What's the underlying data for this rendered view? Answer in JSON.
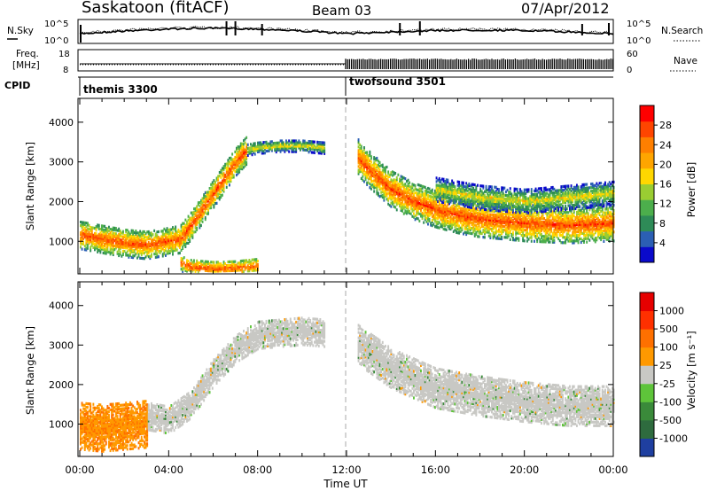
{
  "header": {
    "radar": "Saskatoon (fitACF)",
    "beam": "Beam 03",
    "date": "07/Apr/2012"
  },
  "noise_panel": {
    "left_label": "N.Sky",
    "right_label": "N.Search",
    "left_ticks": [
      "10^5",
      "10^0"
    ],
    "right_ticks": [
      "10^5",
      "10^0"
    ]
  },
  "freq_panel": {
    "left_label_1": "Freq.",
    "left_label_2": "[MHz]",
    "right_label": "Nave",
    "left_ticks": [
      "18",
      "8"
    ],
    "right_ticks": [
      "60",
      "0"
    ]
  },
  "cpid": {
    "label": "CPID",
    "modes": [
      {
        "name": "themis 3300",
        "start_hour": 0
      },
      {
        "name": "twofsound 3501",
        "start_hour": 12
      }
    ]
  },
  "chart_data": [
    {
      "type": "heatmap",
      "panel": "power",
      "ylabel": "Slant Range [km]",
      "yticks": [
        1000,
        2000,
        3000,
        4000
      ],
      "ylim": [
        180,
        4600
      ],
      "xlim": [
        0,
        24
      ],
      "x_unit": "hour UT",
      "colorbar": {
        "label": "Power [dB]",
        "ticks": [
          "4",
          "8",
          "12",
          "16",
          "20",
          "24",
          "28"
        ],
        "colors": [
          "#0a0acb",
          "#2b5fb4",
          "#2e8b57",
          "#4cae4c",
          "#9acd32",
          "#ffd700",
          "#ffa500",
          "#ff7f00",
          "#ff4500",
          "#ff0000"
        ]
      },
      "bands": [
        {
          "name": "near-range echoes",
          "x": [
            0,
            1,
            2,
            3,
            4,
            4.5,
            5,
            6,
            7,
            7.5
          ],
          "range_center": [
            1150,
            1050,
            950,
            900,
            1000,
            1050,
            1400,
            2200,
            3000,
            3300
          ],
          "width_km": 350,
          "level": "high"
        },
        {
          "name": "ground scatter trough",
          "x": [
            4.5,
            5,
            6,
            7,
            8
          ],
          "range_center": [
            450,
            350,
            300,
            320,
            380
          ],
          "width_km": 200,
          "level": "high"
        },
        {
          "name": "day band upper",
          "x": [
            7.5,
            8,
            9,
            10,
            11
          ],
          "range_center": [
            3300,
            3350,
            3400,
            3400,
            3350
          ],
          "width_km": 150,
          "level": "medium"
        },
        {
          "name": "afternoon band",
          "x": [
            12.5,
            13,
            14,
            15,
            16,
            17,
            18,
            20,
            22,
            24
          ],
          "range_center": [
            3100,
            2800,
            2300,
            2000,
            1800,
            1650,
            1550,
            1450,
            1400,
            1450
          ],
          "width_km": 450,
          "level": "high"
        },
        {
          "name": "afternoon upper band",
          "x": [
            16,
            18,
            20,
            22,
            24
          ],
          "range_center": [
            2300,
            2100,
            2000,
            2100,
            2200
          ],
          "width_km": 300,
          "level": "medium"
        }
      ]
    },
    {
      "type": "heatmap",
      "panel": "velocity",
      "ylabel": "Slant Range [km]",
      "yticks": [
        1000,
        2000,
        3000,
        4000
      ],
      "ylim": [
        180,
        4600
      ],
      "xlim": [
        0,
        24
      ],
      "xticks": [
        "00:00",
        "04:00",
        "08:00",
        "12:00",
        "16:00",
        "20:00",
        "00:00"
      ],
      "xlabel": "Time UT",
      "colorbar": {
        "label": "Velocity [m s⁻¹]",
        "ticks": [
          "1000",
          "500",
          "100",
          "25",
          "-25",
          "-100",
          "-500",
          "-1000"
        ],
        "colors": [
          "#1f3fa0",
          "#2e6b3e",
          "#3a8a3a",
          "#5ec43a",
          "#c8c8c4",
          "#ff9900",
          "#ff7000",
          "#ff3000",
          "#e60000"
        ]
      },
      "bands": [
        {
          "name": "near-range negative flow",
          "x": [
            0,
            1,
            2,
            3
          ],
          "range_center": [
            950,
            900,
            950,
            1000
          ],
          "width_km": 600,
          "level": "negative"
        },
        {
          "name": "ground scatter",
          "x": [
            3,
            4,
            5,
            6,
            7,
            8,
            9,
            10,
            11
          ],
          "range_center": [
            1200,
            1100,
            1500,
            2300,
            2900,
            3250,
            3300,
            3350,
            3300
          ],
          "width_km": 350,
          "level": "zero"
        },
        {
          "name": "afternoon scatter",
          "x": [
            12.5,
            14,
            16,
            18,
            20,
            22,
            24
          ],
          "range_center": [
            3000,
            2400,
            1900,
            1700,
            1550,
            1450,
            1450
          ],
          "width_km": 500,
          "level": "zero"
        }
      ]
    }
  ]
}
